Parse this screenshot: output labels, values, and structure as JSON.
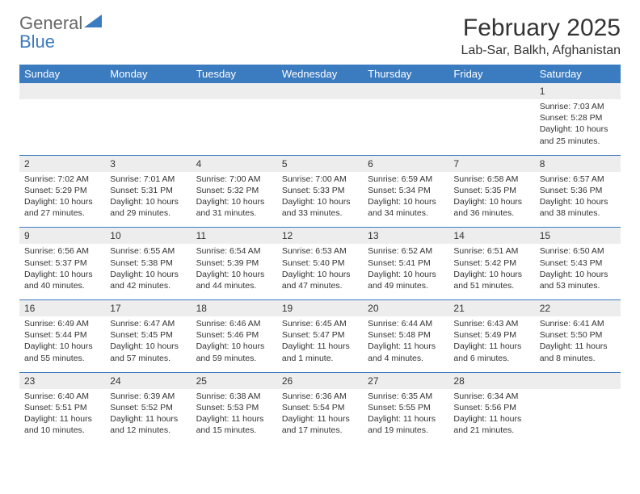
{
  "logo": {
    "text_gray": "General",
    "text_blue": "Blue"
  },
  "title": "February 2025",
  "location": "Lab-Sar, Balkh, Afghanistan",
  "colors": {
    "header_bar": "#3b7bbf",
    "daynum_bg": "#ededed",
    "text": "#333333",
    "logo_gray": "#666666",
    "logo_blue": "#3b7bbf",
    "background": "#ffffff"
  },
  "fonts": {
    "title_size": 30,
    "location_size": 16,
    "weekday_size": 13,
    "daynum_size": 12,
    "body_size": 10.5
  },
  "weekdays": [
    "Sunday",
    "Monday",
    "Tuesday",
    "Wednesday",
    "Thursday",
    "Friday",
    "Saturday"
  ],
  "weeks": [
    [
      {
        "n": "",
        "sr": "",
        "ss": "",
        "dl": ""
      },
      {
        "n": "",
        "sr": "",
        "ss": "",
        "dl": ""
      },
      {
        "n": "",
        "sr": "",
        "ss": "",
        "dl": ""
      },
      {
        "n": "",
        "sr": "",
        "ss": "",
        "dl": ""
      },
      {
        "n": "",
        "sr": "",
        "ss": "",
        "dl": ""
      },
      {
        "n": "",
        "sr": "",
        "ss": "",
        "dl": ""
      },
      {
        "n": "1",
        "sr": "Sunrise: 7:03 AM",
        "ss": "Sunset: 5:28 PM",
        "dl": "Daylight: 10 hours and 25 minutes."
      }
    ],
    [
      {
        "n": "2",
        "sr": "Sunrise: 7:02 AM",
        "ss": "Sunset: 5:29 PM",
        "dl": "Daylight: 10 hours and 27 minutes."
      },
      {
        "n": "3",
        "sr": "Sunrise: 7:01 AM",
        "ss": "Sunset: 5:31 PM",
        "dl": "Daylight: 10 hours and 29 minutes."
      },
      {
        "n": "4",
        "sr": "Sunrise: 7:00 AM",
        "ss": "Sunset: 5:32 PM",
        "dl": "Daylight: 10 hours and 31 minutes."
      },
      {
        "n": "5",
        "sr": "Sunrise: 7:00 AM",
        "ss": "Sunset: 5:33 PM",
        "dl": "Daylight: 10 hours and 33 minutes."
      },
      {
        "n": "6",
        "sr": "Sunrise: 6:59 AM",
        "ss": "Sunset: 5:34 PM",
        "dl": "Daylight: 10 hours and 34 minutes."
      },
      {
        "n": "7",
        "sr": "Sunrise: 6:58 AM",
        "ss": "Sunset: 5:35 PM",
        "dl": "Daylight: 10 hours and 36 minutes."
      },
      {
        "n": "8",
        "sr": "Sunrise: 6:57 AM",
        "ss": "Sunset: 5:36 PM",
        "dl": "Daylight: 10 hours and 38 minutes."
      }
    ],
    [
      {
        "n": "9",
        "sr": "Sunrise: 6:56 AM",
        "ss": "Sunset: 5:37 PM",
        "dl": "Daylight: 10 hours and 40 minutes."
      },
      {
        "n": "10",
        "sr": "Sunrise: 6:55 AM",
        "ss": "Sunset: 5:38 PM",
        "dl": "Daylight: 10 hours and 42 minutes."
      },
      {
        "n": "11",
        "sr": "Sunrise: 6:54 AM",
        "ss": "Sunset: 5:39 PM",
        "dl": "Daylight: 10 hours and 44 minutes."
      },
      {
        "n": "12",
        "sr": "Sunrise: 6:53 AM",
        "ss": "Sunset: 5:40 PM",
        "dl": "Daylight: 10 hours and 47 minutes."
      },
      {
        "n": "13",
        "sr": "Sunrise: 6:52 AM",
        "ss": "Sunset: 5:41 PM",
        "dl": "Daylight: 10 hours and 49 minutes."
      },
      {
        "n": "14",
        "sr": "Sunrise: 6:51 AM",
        "ss": "Sunset: 5:42 PM",
        "dl": "Daylight: 10 hours and 51 minutes."
      },
      {
        "n": "15",
        "sr": "Sunrise: 6:50 AM",
        "ss": "Sunset: 5:43 PM",
        "dl": "Daylight: 10 hours and 53 minutes."
      }
    ],
    [
      {
        "n": "16",
        "sr": "Sunrise: 6:49 AM",
        "ss": "Sunset: 5:44 PM",
        "dl": "Daylight: 10 hours and 55 minutes."
      },
      {
        "n": "17",
        "sr": "Sunrise: 6:47 AM",
        "ss": "Sunset: 5:45 PM",
        "dl": "Daylight: 10 hours and 57 minutes."
      },
      {
        "n": "18",
        "sr": "Sunrise: 6:46 AM",
        "ss": "Sunset: 5:46 PM",
        "dl": "Daylight: 10 hours and 59 minutes."
      },
      {
        "n": "19",
        "sr": "Sunrise: 6:45 AM",
        "ss": "Sunset: 5:47 PM",
        "dl": "Daylight: 11 hours and 1 minute."
      },
      {
        "n": "20",
        "sr": "Sunrise: 6:44 AM",
        "ss": "Sunset: 5:48 PM",
        "dl": "Daylight: 11 hours and 4 minutes."
      },
      {
        "n": "21",
        "sr": "Sunrise: 6:43 AM",
        "ss": "Sunset: 5:49 PM",
        "dl": "Daylight: 11 hours and 6 minutes."
      },
      {
        "n": "22",
        "sr": "Sunrise: 6:41 AM",
        "ss": "Sunset: 5:50 PM",
        "dl": "Daylight: 11 hours and 8 minutes."
      }
    ],
    [
      {
        "n": "23",
        "sr": "Sunrise: 6:40 AM",
        "ss": "Sunset: 5:51 PM",
        "dl": "Daylight: 11 hours and 10 minutes."
      },
      {
        "n": "24",
        "sr": "Sunrise: 6:39 AM",
        "ss": "Sunset: 5:52 PM",
        "dl": "Daylight: 11 hours and 12 minutes."
      },
      {
        "n": "25",
        "sr": "Sunrise: 6:38 AM",
        "ss": "Sunset: 5:53 PM",
        "dl": "Daylight: 11 hours and 15 minutes."
      },
      {
        "n": "26",
        "sr": "Sunrise: 6:36 AM",
        "ss": "Sunset: 5:54 PM",
        "dl": "Daylight: 11 hours and 17 minutes."
      },
      {
        "n": "27",
        "sr": "Sunrise: 6:35 AM",
        "ss": "Sunset: 5:55 PM",
        "dl": "Daylight: 11 hours and 19 minutes."
      },
      {
        "n": "28",
        "sr": "Sunrise: 6:34 AM",
        "ss": "Sunset: 5:56 PM",
        "dl": "Daylight: 11 hours and 21 minutes."
      },
      {
        "n": "",
        "sr": "",
        "ss": "",
        "dl": ""
      }
    ]
  ]
}
